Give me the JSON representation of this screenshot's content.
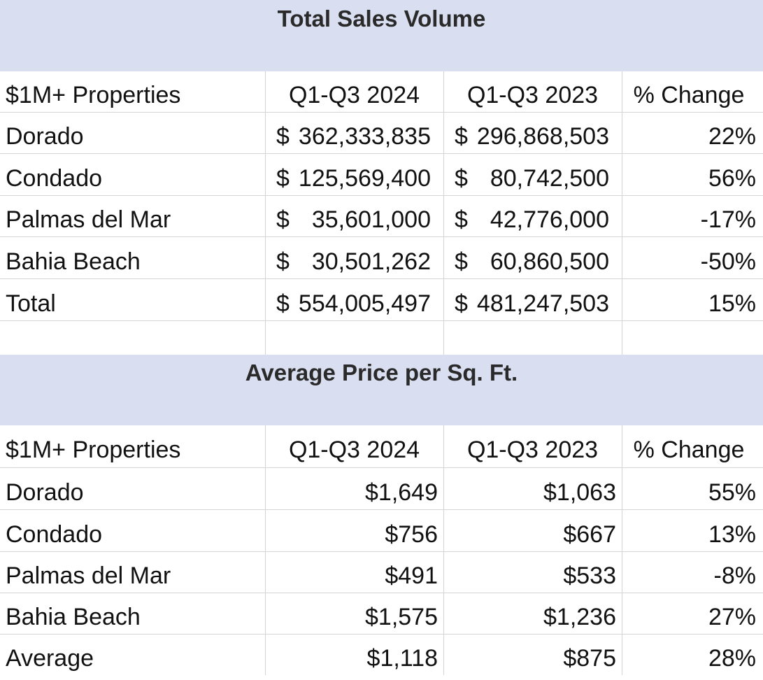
{
  "sales_volume": {
    "title": "Total Sales Volume",
    "headers": [
      "$1M+ Properties",
      "Q1-Q3 2024",
      "Q1-Q3 2023",
      "% Change"
    ],
    "rows": [
      {
        "name": "Dorado",
        "cur": "$",
        "y2024": "362,333,835",
        "cur2": "$",
        "y2023": "296,868,503",
        "change": "22%"
      },
      {
        "name": "Condado",
        "cur": "$",
        "y2024": "125,569,400",
        "cur2": "$",
        "y2023": "80,742,500",
        "change": "56%"
      },
      {
        "name": "Palmas del Mar",
        "cur": "$",
        "y2024": "35,601,000",
        "cur2": "$",
        "y2023": "42,776,000",
        "change": "-17%"
      },
      {
        "name": "Bahia Beach",
        "cur": "$",
        "y2024": "30,501,262",
        "cur2": "$",
        "y2023": "60,860,500",
        "change": "-50%"
      },
      {
        "name": "Total",
        "cur": "$",
        "y2024": "554,005,497",
        "cur2": "$",
        "y2023": "481,247,503",
        "change": "15%"
      }
    ]
  },
  "price_per_sqft": {
    "title": "Average Price per Sq. Ft.",
    "headers": [
      "$1M+ Properties",
      "Q1-Q3 2024",
      "Q1-Q3 2023",
      "% Change"
    ],
    "rows": [
      {
        "name": "Dorado",
        "y2024": "$1,649",
        "y2023": "$1,063",
        "change": "55%"
      },
      {
        "name": "Condado",
        "y2024": "$756",
        "y2023": "$667",
        "change": "13%"
      },
      {
        "name": "Palmas del Mar",
        "y2024": "$491",
        "y2023": "$533",
        "change": "-8%"
      },
      {
        "name": "Bahia Beach",
        "y2024": "$1,575",
        "y2023": "$1,236",
        "change": "27%"
      },
      {
        "name": "Average",
        "y2024": "$1,118",
        "y2023": "$875",
        "change": "28%"
      }
    ]
  },
  "colors": {
    "title_band": "#d9dff0",
    "grid": "#d4d4d4"
  }
}
